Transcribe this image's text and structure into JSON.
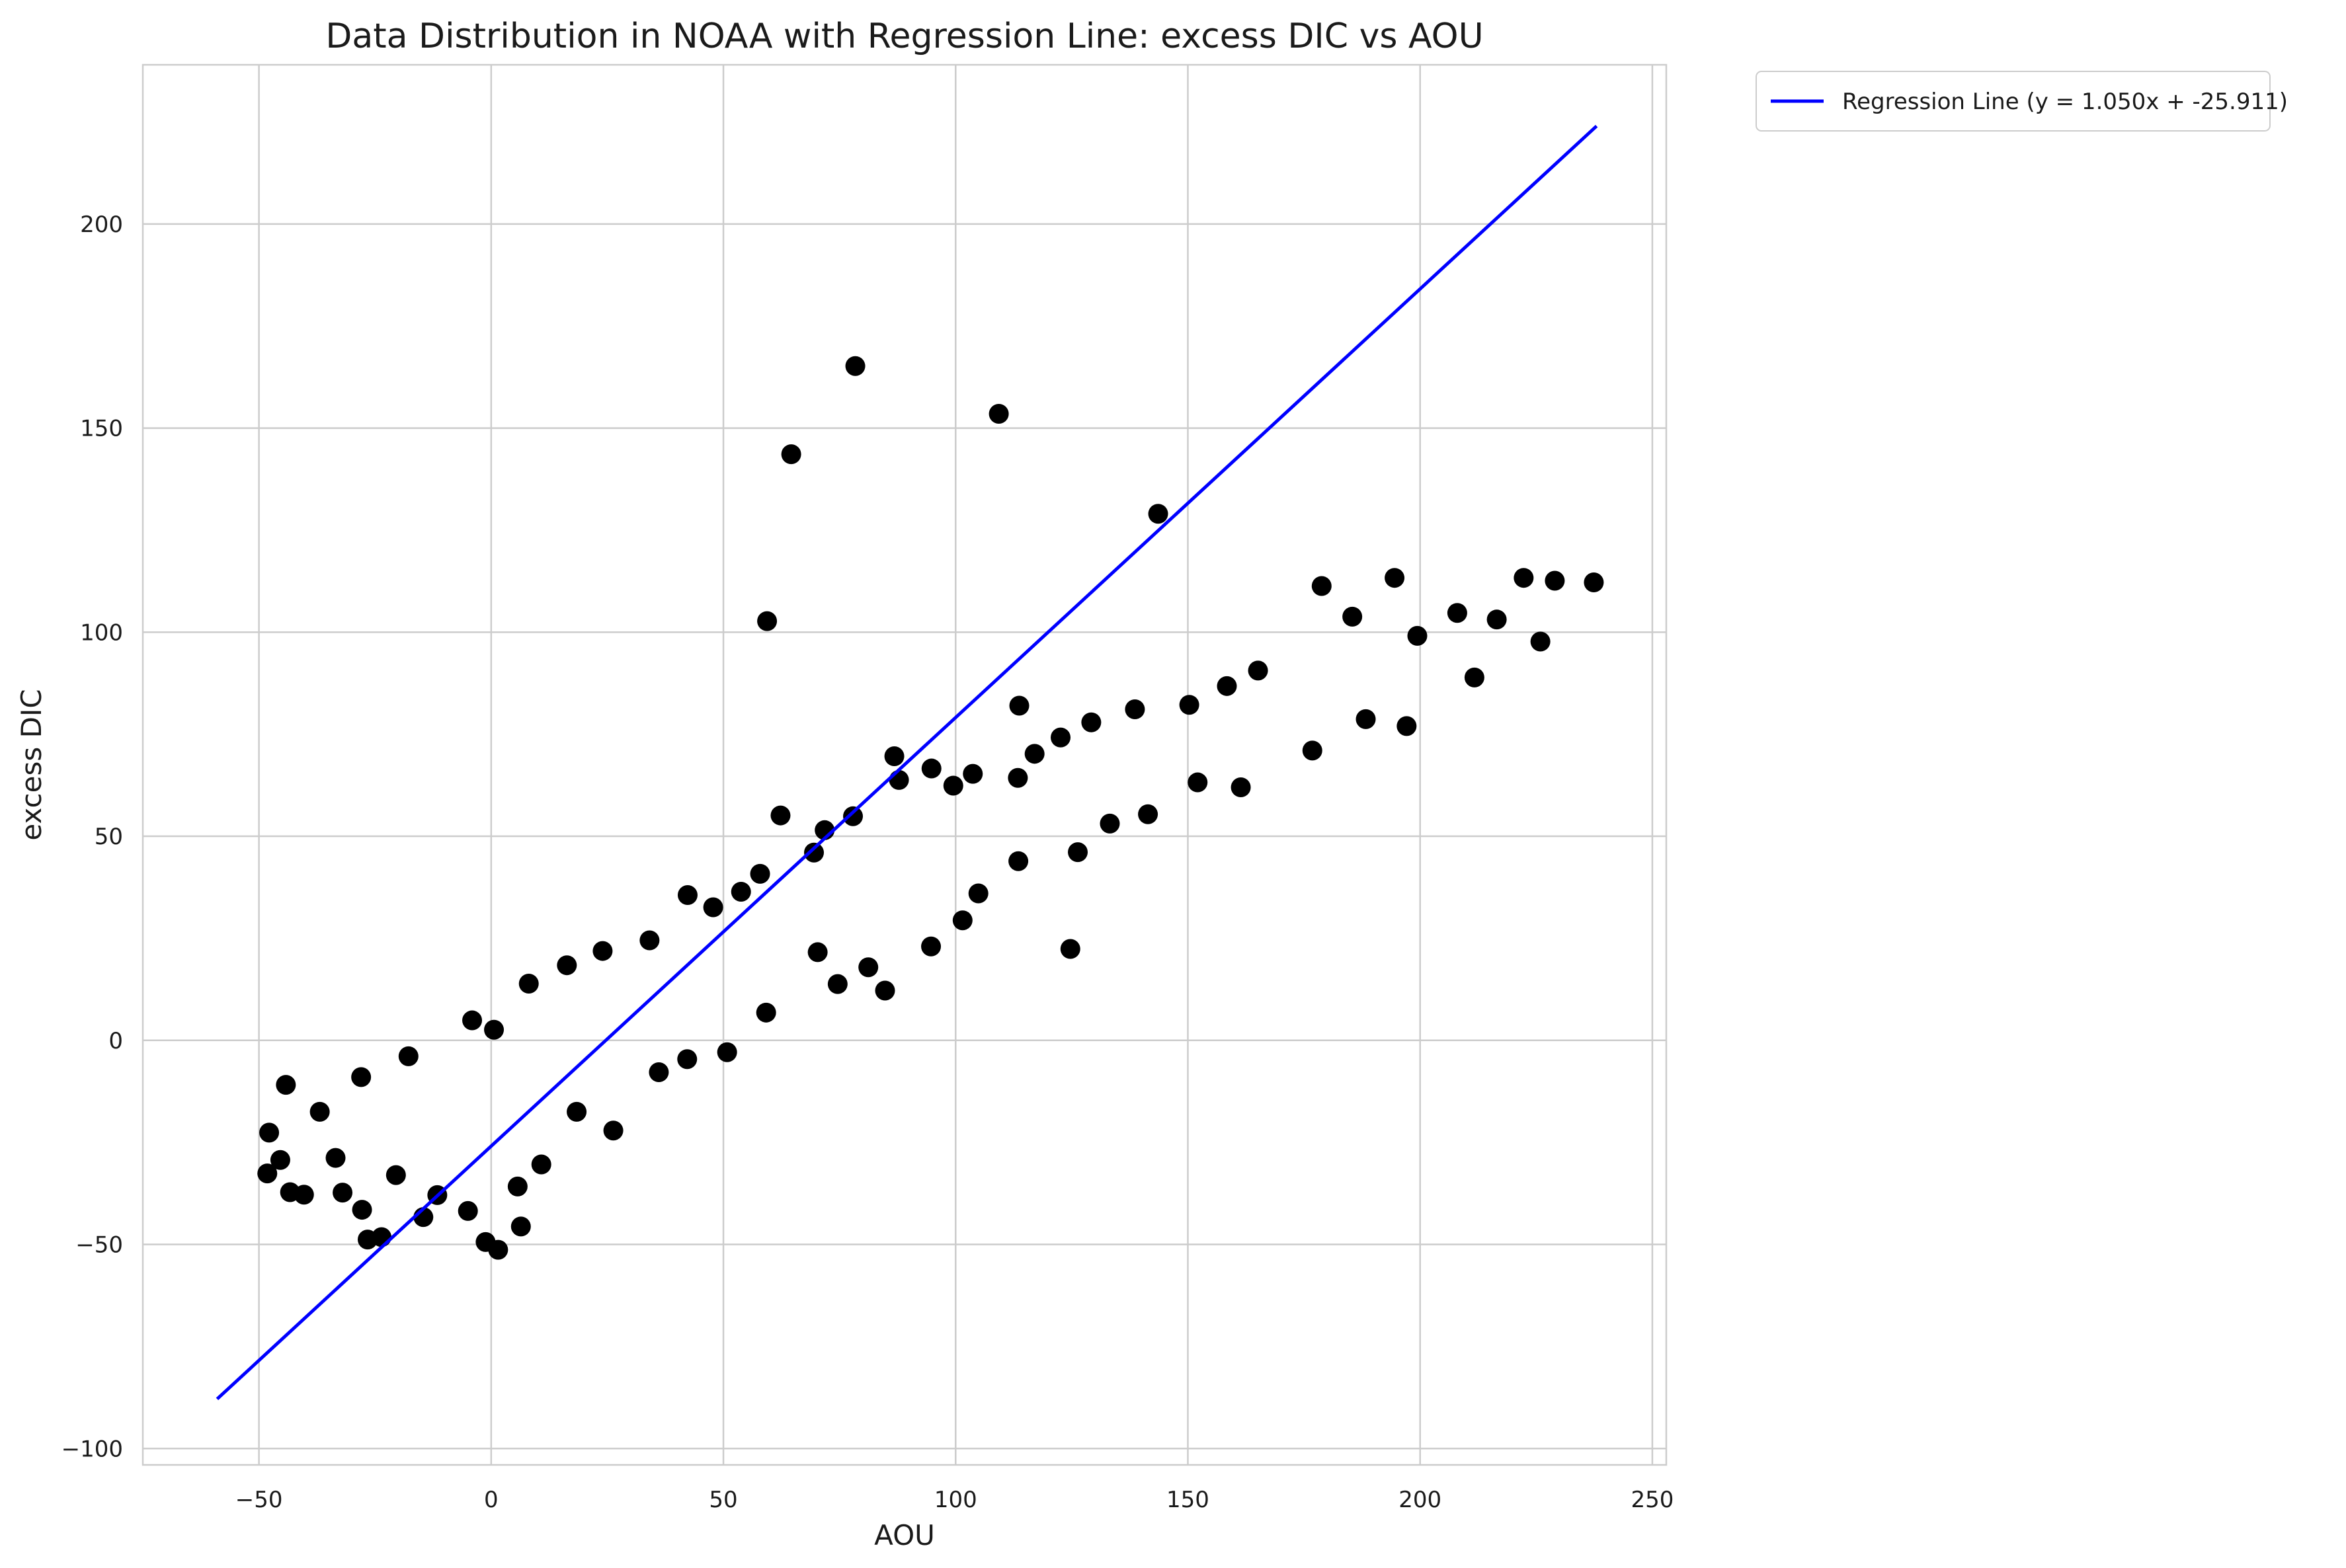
{
  "chart_data": {
    "type": "scatter",
    "title": "Data Distribution in NOAA with Regression Line: excess DIC vs AOU",
    "xlabel": "AOU",
    "ylabel": "excess DIC",
    "xlim": [
      -75,
      253
    ],
    "ylim": [
      -104,
      239
    ],
    "xticks": [
      -50,
      0,
      50,
      100,
      150,
      200,
      250
    ],
    "yticks": [
      -100,
      -50,
      0,
      50,
      100,
      150,
      200
    ],
    "grid": true,
    "legend_position": "outside-top-right",
    "point_color": "#000000",
    "line_color": "#0000ff",
    "regression": {
      "name": "Regression Line (y = 1.050x + -25.911)",
      "slope": 1.05,
      "intercept": -25.911,
      "x_range": [
        -59,
        238
      ]
    },
    "points": [
      [
        78.4,
        165.2
      ],
      [
        109.3,
        153.5
      ],
      [
        64.6,
        143.6
      ],
      [
        143.6,
        129.0
      ],
      [
        59.4,
        102.7
      ],
      [
        124.7,
        22.4
      ],
      [
        84.8,
        12.2
      ],
      [
        113.7,
        82.0
      ],
      [
        86.8,
        69.6
      ],
      [
        -44.2,
        -10.9
      ],
      [
        -47.8,
        -22.6
      ],
      [
        -48.2,
        -32.6
      ],
      [
        -43.3,
        -37.2
      ],
      [
        -40.3,
        -37.8
      ],
      [
        -45.4,
        -29.3
      ],
      [
        -36.9,
        -17.5
      ],
      [
        -32.0,
        -37.3
      ],
      [
        -27.8,
        -41.5
      ],
      [
        -26.6,
        -48.8
      ],
      [
        -23.6,
        -48.2
      ],
      [
        -28.0,
        -9.0
      ],
      [
        -17.8,
        -3.9
      ],
      [
        -1.2,
        -49.4
      ],
      [
        1.5,
        -51.3
      ],
      [
        6.4,
        -45.6
      ],
      [
        -4.1,
        4.9
      ],
      [
        0.6,
        2.6
      ],
      [
        8.1,
        13.9
      ],
      [
        16.3,
        18.4
      ],
      [
        24.0,
        21.9
      ],
      [
        34.1,
        24.5
      ],
      [
        42.3,
        35.6
      ],
      [
        47.8,
        32.6
      ],
      [
        53.8,
        36.4
      ],
      [
        62.3,
        55.1
      ],
      [
        57.9,
        40.8
      ],
      [
        69.5,
        46.0
      ],
      [
        71.8,
        51.5
      ],
      [
        77.9,
        54.9
      ],
      [
        87.8,
        63.8
      ],
      [
        94.8,
        66.6
      ],
      [
        99.5,
        62.4
      ],
      [
        103.7,
        65.3
      ],
      [
        113.4,
        64.3
      ],
      [
        117.0,
        70.2
      ],
      [
        122.6,
        74.2
      ],
      [
        129.2,
        77.9
      ],
      [
        138.6,
        81.1
      ],
      [
        150.3,
        82.2
      ],
      [
        158.4,
        86.8
      ],
      [
        165.1,
        90.6
      ],
      [
        178.8,
        111.3
      ],
      [
        185.4,
        103.8
      ],
      [
        194.5,
        113.3
      ],
      [
        199.4,
        99.1
      ],
      [
        208.0,
        104.7
      ],
      [
        216.5,
        103.1
      ],
      [
        222.3,
        113.3
      ],
      [
        229.0,
        112.6
      ],
      [
        237.4,
        112.2
      ],
      [
        225.9,
        97.7
      ],
      [
        211.7,
        88.9
      ],
      [
        197.1,
        77.0
      ],
      [
        188.3,
        78.7
      ],
      [
        176.8,
        71.0
      ],
      [
        161.4,
        62.0
      ],
      [
        152.1,
        63.2
      ],
      [
        141.4,
        55.4
      ],
      [
        133.2,
        53.1
      ],
      [
        126.3,
        46.1
      ],
      [
        113.5,
        43.9
      ],
      [
        104.9,
        36.0
      ],
      [
        101.5,
        29.4
      ],
      [
        94.7,
        23.0
      ],
      [
        81.2,
        17.9
      ],
      [
        74.6,
        13.8
      ],
      [
        70.3,
        21.6
      ],
      [
        59.2,
        6.8
      ],
      [
        50.8,
        -2.9
      ],
      [
        42.2,
        -4.6
      ],
      [
        36.1,
        -7.8
      ],
      [
        26.3,
        -22.1
      ],
      [
        18.4,
        -17.5
      ],
      [
        10.8,
        -30.4
      ],
      [
        5.7,
        -35.8
      ],
      [
        -5.0,
        -41.8
      ],
      [
        -11.6,
        -37.9
      ],
      [
        -14.6,
        -43.3
      ],
      [
        -20.5,
        -33.0
      ],
      [
        -33.5,
        -28.8
      ]
    ]
  },
  "legend": {
    "label": "Regression Line (y = 1.050x + -25.911)"
  }
}
